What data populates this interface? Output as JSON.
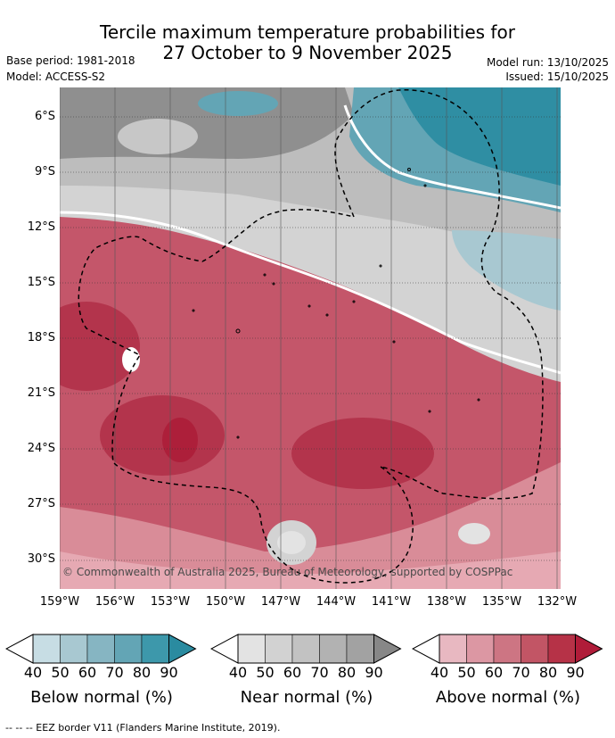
{
  "title_line1": "Tercile maximum temperature probabilities for",
  "title_line2": "27 October to 9 November 2025",
  "base_period": "Base period: 1981-2018",
  "model": "Model: ACCESS-S2",
  "model_run": "Model run: 13/10/2025",
  "issued": "Issued: 15/10/2025",
  "latitude_labels": [
    "6°S",
    "9°S",
    "12°S",
    "15°S",
    "18°S",
    "21°S",
    "24°S",
    "27°S",
    "30°S"
  ],
  "longitude_labels": [
    "159°W",
    "156°W",
    "153°W",
    "150°W",
    "147°W",
    "144°W",
    "141°W",
    "138°W",
    "135°W",
    "132°W"
  ],
  "credit": "© Commonwealth of Australia 2025, Bureau of Meteorology, supported by COSPPac",
  "legends": [
    {
      "title": "Below normal (%)",
      "ticks": [
        "40",
        "50",
        "60",
        "70",
        "80",
        "90"
      ],
      "colors": [
        "#ffffff",
        "#c7dde4",
        "#a8c8d1",
        "#86b5c2",
        "#63a5b5",
        "#3d98ab",
        "#2a8ba0"
      ]
    },
    {
      "title": "Near normal (%)",
      "ticks": [
        "40",
        "50",
        "60",
        "70",
        "80",
        "90"
      ],
      "colors": [
        "#ffffff",
        "#e3e3e3",
        "#d2d2d2",
        "#c2c2c2",
        "#b2b2b2",
        "#a2a2a2",
        "#878787"
      ]
    },
    {
      "title": "Above normal (%)",
      "ticks": [
        "40",
        "50",
        "60",
        "70",
        "80",
        "90"
      ],
      "colors": [
        "#ffffff",
        "#e8b8c1",
        "#dc97a3",
        "#cd7583",
        "#c25565",
        "#b63247",
        "#b01c39"
      ]
    }
  ],
  "footnote": "-- -- -- EEZ border V11 (Flanders Marine Institute, 2019)."
}
